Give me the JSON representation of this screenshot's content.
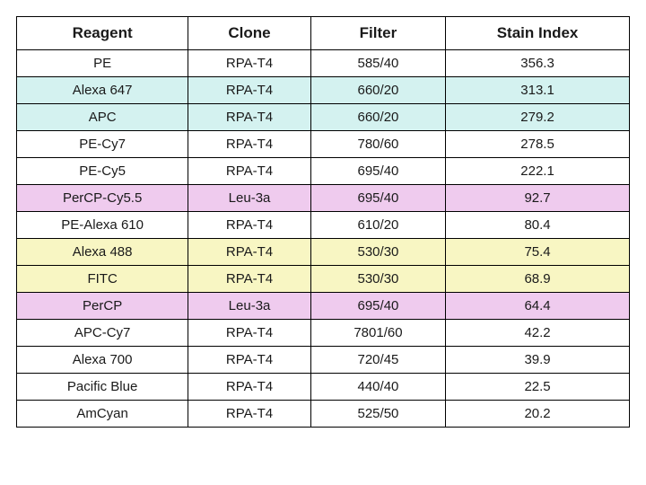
{
  "table": {
    "columns": [
      "Reagent",
      "Clone",
      "Filter",
      "Stain Index"
    ],
    "column_widths_pct": [
      28,
      20,
      22,
      30
    ],
    "header_fontsize": 17,
    "cell_fontsize": 15,
    "border_color": "#000000",
    "colors": {
      "white": "#ffffff",
      "cyan": "#d4f2f0",
      "pink": "#efcbee",
      "yellow": "#f8f6c3"
    },
    "rows": [
      {
        "reagent": "PE",
        "clone": "RPA-T4",
        "filter": "585/40",
        "stain_index": "356.3",
        "bg": "white"
      },
      {
        "reagent": "Alexa 647",
        "clone": "RPA-T4",
        "filter": "660/20",
        "stain_index": "313.1",
        "bg": "cyan"
      },
      {
        "reagent": "APC",
        "clone": "RPA-T4",
        "filter": "660/20",
        "stain_index": "279.2",
        "bg": "cyan"
      },
      {
        "reagent": "PE-Cy7",
        "clone": "RPA-T4",
        "filter": "780/60",
        "stain_index": "278.5",
        "bg": "white"
      },
      {
        "reagent": "PE-Cy5",
        "clone": "RPA-T4",
        "filter": "695/40",
        "stain_index": "222.1",
        "bg": "white"
      },
      {
        "reagent": "PerCP-Cy5.5",
        "clone": "Leu-3a",
        "filter": "695/40",
        "stain_index": "92.7",
        "bg": "pink"
      },
      {
        "reagent": "PE-Alexa 610",
        "clone": "RPA-T4",
        "filter": "610/20",
        "stain_index": "80.4",
        "bg": "white"
      },
      {
        "reagent": "Alexa 488",
        "clone": "RPA-T4",
        "filter": "530/30",
        "stain_index": "75.4",
        "bg": "yellow"
      },
      {
        "reagent": "FITC",
        "clone": "RPA-T4",
        "filter": "530/30",
        "stain_index": "68.9",
        "bg": "yellow"
      },
      {
        "reagent": "PerCP",
        "clone": "Leu-3a",
        "filter": "695/40",
        "stain_index": "64.4",
        "bg": "pink"
      },
      {
        "reagent": "APC-Cy7",
        "clone": "RPA-T4",
        "filter": "7801/60",
        "stain_index": "42.2",
        "bg": "white"
      },
      {
        "reagent": "Alexa 700",
        "clone": "RPA-T4",
        "filter": "720/45",
        "stain_index": "39.9",
        "bg": "white"
      },
      {
        "reagent": "Pacific Blue",
        "clone": "RPA-T4",
        "filter": "440/40",
        "stain_index": "22.5",
        "bg": "white"
      },
      {
        "reagent": "AmCyan",
        "clone": "RPA-T4",
        "filter": "525/50",
        "stain_index": "20.2",
        "bg": "white"
      }
    ]
  }
}
